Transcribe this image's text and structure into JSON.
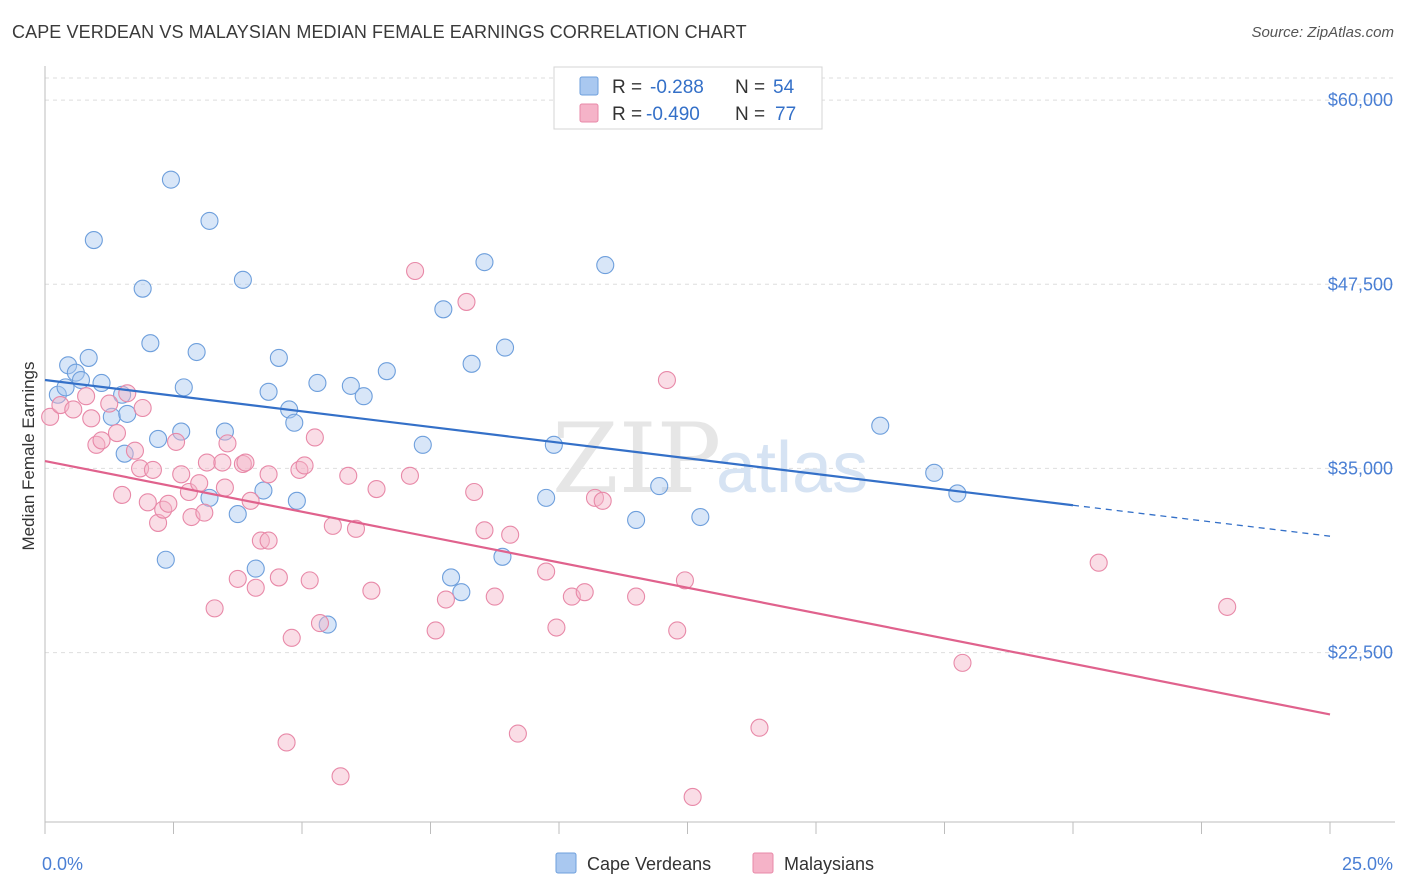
{
  "title": "CAPE VERDEAN VS MALAYSIAN MEDIAN FEMALE EARNINGS CORRELATION CHART",
  "source": "Source: ZipAtlas.com",
  "watermark": {
    "zip": "ZIP",
    "atlas": "atlas"
  },
  "legend": {
    "rows": [
      {
        "r_label": "R =",
        "r_value": "-0.288",
        "n_label": "N =",
        "n_value": "54",
        "color": "#a9c8f0"
      },
      {
        "r_label": "R =",
        "r_value": "-0.490",
        "n_label": "N =",
        "n_value": "77",
        "color": "#f5b3c8"
      }
    ]
  },
  "bottom_legend": [
    "Cape Verdeans",
    "Malaysians"
  ],
  "chart_data": {
    "type": "scatter",
    "ylabel": "Median Female Earnings",
    "xlim": [
      0,
      25
    ],
    "ylim": [
      11000,
      61500
    ],
    "x_tick_labels": [
      "0.0%",
      "25.0%"
    ],
    "y_ticks": [
      22500,
      35000,
      47500,
      60000
    ],
    "y_tick_labels": [
      "$22,500",
      "$35,000",
      "$47,500",
      "$60,000"
    ],
    "grid": true,
    "series": [
      {
        "name": "Cape Verdeans",
        "color": "#a9c8f0",
        "stroke": "#6e9fdc",
        "trend": {
          "x": [
            0,
            20
          ],
          "y": [
            41000,
            32500
          ],
          "dash_to_x": 25,
          "dash_to_y": 30400,
          "color": "#3470c8"
        },
        "points": [
          [
            0.25,
            40000
          ],
          [
            0.4,
            40500
          ],
          [
            0.45,
            42000
          ],
          [
            0.6,
            41500
          ],
          [
            0.7,
            41000
          ],
          [
            0.85,
            42500
          ],
          [
            0.95,
            50500
          ],
          [
            1.1,
            40800
          ],
          [
            1.3,
            38500
          ],
          [
            1.5,
            40000
          ],
          [
            1.6,
            38700
          ],
          [
            1.9,
            47200
          ],
          [
            2.05,
            43500
          ],
          [
            2.2,
            37000
          ],
          [
            2.35,
            28800
          ],
          [
            2.45,
            54600
          ],
          [
            2.7,
            40500
          ],
          [
            2.95,
            42900
          ],
          [
            3.2,
            51800
          ],
          [
            3.2,
            33000
          ],
          [
            3.5,
            37500
          ],
          [
            3.75,
            31900
          ],
          [
            3.85,
            47800
          ],
          [
            4.1,
            28200
          ],
          [
            4.25,
            33500
          ],
          [
            4.35,
            40200
          ],
          [
            4.55,
            42500
          ],
          [
            4.75,
            39000
          ],
          [
            4.85,
            38100
          ],
          [
            4.9,
            32800
          ],
          [
            5.3,
            40800
          ],
          [
            5.5,
            24400
          ],
          [
            5.95,
            40600
          ],
          [
            6.2,
            39900
          ],
          [
            6.65,
            41600
          ],
          [
            7.35,
            36600
          ],
          [
            7.75,
            45800
          ],
          [
            7.9,
            27600
          ],
          [
            8.1,
            26600
          ],
          [
            8.3,
            42100
          ],
          [
            8.55,
            49000
          ],
          [
            8.9,
            29000
          ],
          [
            8.95,
            43200
          ],
          [
            9.75,
            33000
          ],
          [
            9.9,
            36600
          ],
          [
            10.9,
            48800
          ],
          [
            11.5,
            31500
          ],
          [
            11.95,
            33800
          ],
          [
            12.75,
            31700
          ],
          [
            16.25,
            37900
          ],
          [
            17.3,
            34700
          ],
          [
            17.75,
            33300
          ],
          [
            1.55,
            36000
          ],
          [
            2.65,
            37500
          ]
        ]
      },
      {
        "name": "Malaysians",
        "color": "#f5b3c8",
        "stroke": "#e889a8",
        "trend": {
          "x": [
            0,
            25
          ],
          "y": [
            35500,
            18300
          ],
          "color": "#e0628d"
        },
        "points": [
          [
            0.1,
            38500
          ],
          [
            0.3,
            39300
          ],
          [
            0.55,
            39000
          ],
          [
            0.8,
            39900
          ],
          [
            0.9,
            38400
          ],
          [
            1.0,
            36600
          ],
          [
            1.1,
            36900
          ],
          [
            1.25,
            39400
          ],
          [
            1.4,
            37400
          ],
          [
            1.5,
            33200
          ],
          [
            1.6,
            40100
          ],
          [
            1.75,
            36200
          ],
          [
            1.85,
            35000
          ],
          [
            2.0,
            32700
          ],
          [
            2.1,
            34900
          ],
          [
            2.2,
            31300
          ],
          [
            2.3,
            32200
          ],
          [
            2.4,
            32600
          ],
          [
            2.55,
            36800
          ],
          [
            2.65,
            34600
          ],
          [
            2.8,
            33400
          ],
          [
            2.85,
            31700
          ],
          [
            3.0,
            34000
          ],
          [
            3.1,
            32000
          ],
          [
            3.15,
            35400
          ],
          [
            3.3,
            25500
          ],
          [
            3.45,
            35400
          ],
          [
            3.5,
            33700
          ],
          [
            3.75,
            27500
          ],
          [
            3.85,
            35300
          ],
          [
            3.9,
            35400
          ],
          [
            4.0,
            32800
          ],
          [
            4.1,
            26900
          ],
          [
            4.2,
            30100
          ],
          [
            4.35,
            30100
          ],
          [
            4.35,
            34600
          ],
          [
            4.55,
            27600
          ],
          [
            4.7,
            16400
          ],
          [
            4.8,
            23500
          ],
          [
            4.95,
            34900
          ],
          [
            5.05,
            35200
          ],
          [
            5.15,
            27400
          ],
          [
            5.25,
            37100
          ],
          [
            5.35,
            24500
          ],
          [
            5.6,
            31100
          ],
          [
            5.75,
            14100
          ],
          [
            5.9,
            34500
          ],
          [
            6.05,
            30900
          ],
          [
            6.35,
            26700
          ],
          [
            6.45,
            33600
          ],
          [
            7.1,
            34500
          ],
          [
            7.2,
            48400
          ],
          [
            7.6,
            24000
          ],
          [
            7.8,
            26100
          ],
          [
            8.2,
            46300
          ],
          [
            8.35,
            33400
          ],
          [
            8.55,
            30800
          ],
          [
            8.75,
            26300
          ],
          [
            9.05,
            30500
          ],
          [
            9.2,
            17000
          ],
          [
            9.75,
            28000
          ],
          [
            9.95,
            24200
          ],
          [
            10.25,
            26300
          ],
          [
            10.5,
            26600
          ],
          [
            10.7,
            33000
          ],
          [
            10.85,
            32800
          ],
          [
            11.5,
            26300
          ],
          [
            12.1,
            41000
          ],
          [
            12.3,
            24000
          ],
          [
            12.45,
            27400
          ],
          [
            12.6,
            12700
          ],
          [
            13.9,
            17400
          ],
          [
            17.85,
            21800
          ],
          [
            20.5,
            28600
          ],
          [
            23.0,
            25600
          ],
          [
            3.55,
            36700
          ],
          [
            1.9,
            39100
          ]
        ]
      }
    ]
  }
}
